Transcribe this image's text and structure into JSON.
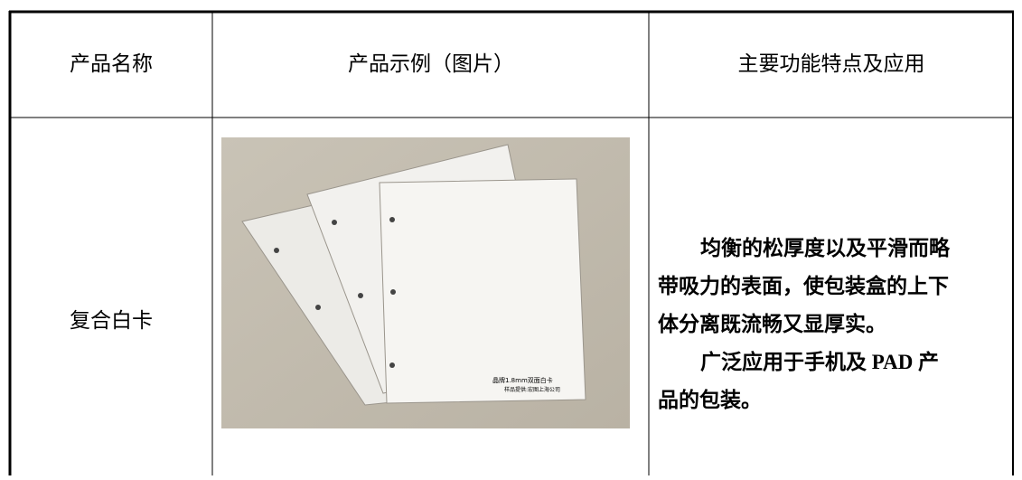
{
  "table": {
    "header": [
      "产品名称",
      "产品示例（图片）",
      "主要功能特点及应用"
    ],
    "rows": [
      {
        "name": "复合白卡",
        "image_caption": [
          "晶牌1.8mm双面白卡",
          "样品提供:宏图上海公司"
        ],
        "description": [
          "均衡的松厚度以及平滑而略",
          "带吸力的表面，使包装盒的上下",
          "体分离既流畅又显厚实。",
          "广泛应用于手机及 PAD 产",
          "品的包装。"
        ]
      }
    ]
  }
}
